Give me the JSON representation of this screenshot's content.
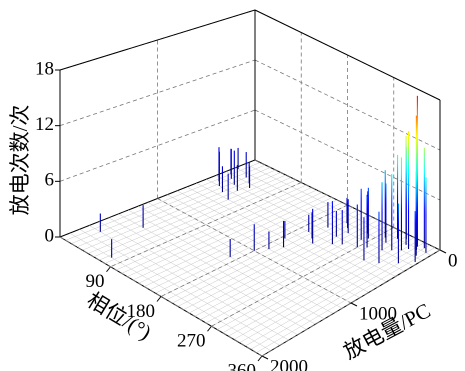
{
  "chart_data": {
    "type": "bar3d",
    "zlabel": "放电次数/次",
    "xlabel": "相位/(°)",
    "ylabel": "放电量/PC",
    "xlim": [
      0,
      360
    ],
    "xticks": [
      90,
      180,
      270,
      360
    ],
    "ylim": [
      0,
      2000
    ],
    "yticks": [
      0,
      1000,
      2000
    ],
    "zlim": [
      0,
      18
    ],
    "zticks": [
      0,
      6,
      12,
      18
    ],
    "grid": true,
    "colormap": [
      "#000080",
      "#0000ff",
      "#00ffff",
      "#ffff00",
      "#ff0000"
    ],
    "x": [
      330,
      335,
      325,
      340,
      320,
      345,
      310,
      300,
      315,
      350,
      290,
      280,
      270,
      260,
      250,
      240,
      230,
      220,
      210,
      300,
      320,
      340,
      355,
      280,
      295,
      305,
      265,
      255,
      245,
      235,
      225,
      215,
      205,
      195,
      185,
      200,
      190,
      180,
      170,
      20,
      45,
      75,
      10,
      15,
      20,
      25,
      30,
      35,
      40,
      45,
      50,
      55,
      60,
      5
    ],
    "y": [
      80,
      120,
      150,
      60,
      200,
      180,
      250,
      300,
      120,
      100,
      200,
      350,
      400,
      300,
      450,
      500,
      400,
      600,
      550,
      500,
      450,
      350,
      250,
      150,
      100,
      60,
      250,
      200,
      150,
      300,
      250,
      200,
      350,
      500,
      700,
      800,
      900,
      1000,
      1200,
      1700,
      1400,
      1900,
      300,
      450,
      350,
      500,
      250,
      400,
      550,
      300,
      450,
      350,
      600,
      200
    ],
    "values": [
      18,
      16,
      14,
      12,
      11,
      10,
      9,
      8,
      13,
      9,
      7,
      6,
      5,
      6,
      4,
      5,
      3,
      4,
      3,
      5,
      6,
      7,
      6,
      8,
      10,
      11,
      6,
      5,
      4,
      4,
      3,
      3,
      3,
      2,
      2,
      3,
      2,
      3,
      2,
      2,
      2.5,
      2,
      3,
      4,
      3.5,
      4,
      3,
      4,
      3,
      2.5,
      3,
      2.5,
      3,
      2.5
    ]
  }
}
